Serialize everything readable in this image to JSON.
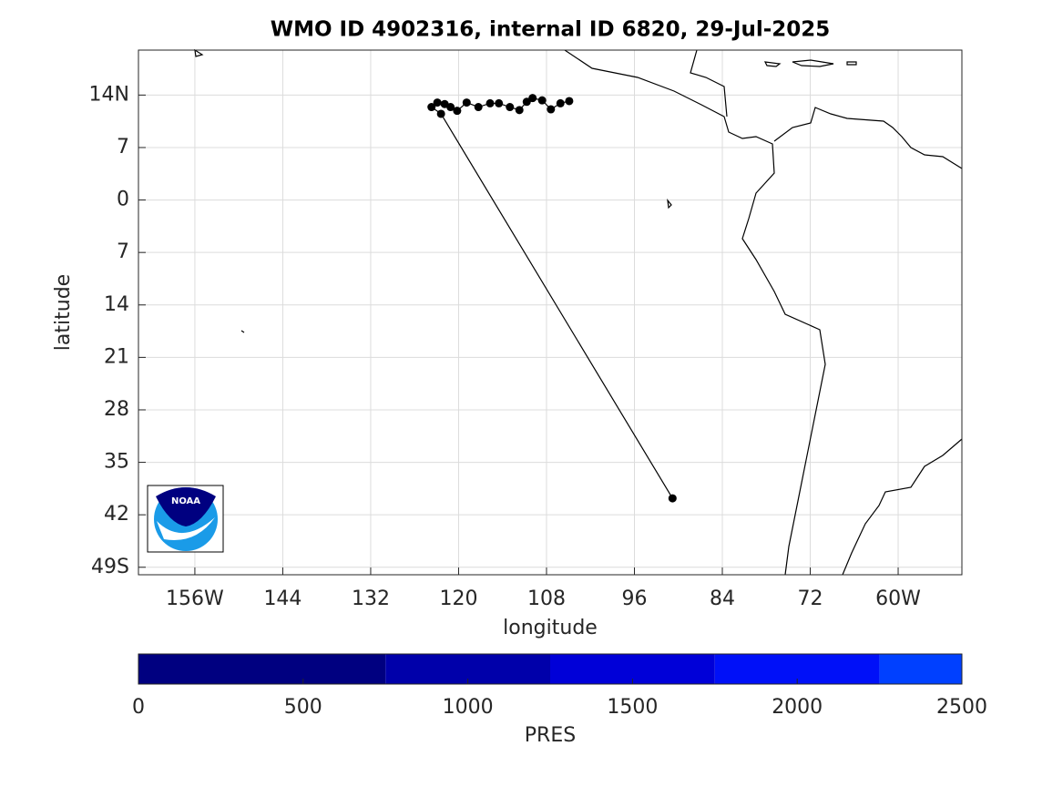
{
  "chart_data": {
    "type": "track",
    "title": "WMO ID 4902316, internal ID 6820, 29-Jul-2025",
    "xlabel": "longitude",
    "ylabel": "latitude",
    "logo": "NOAA",
    "xlim": [
      -163.7,
      -51.3
    ],
    "ylim": [
      -50,
      20
    ],
    "xticks": [
      {
        "value": -156,
        "label": "156W"
      },
      {
        "value": -144,
        "label": "144"
      },
      {
        "value": -132,
        "label": "132"
      },
      {
        "value": -120,
        "label": "120"
      },
      {
        "value": -108,
        "label": "108"
      },
      {
        "value": -96,
        "label": "96"
      },
      {
        "value": -84,
        "label": "84"
      },
      {
        "value": -72,
        "label": "72"
      },
      {
        "value": -60,
        "label": "60W"
      }
    ],
    "yticks": [
      {
        "value": 14,
        "label": "14N"
      },
      7,
      0,
      {
        "value": -7,
        "label": "7"
      },
      {
        "value": -14,
        "label": "14"
      },
      {
        "value": -21,
        "label": "21"
      },
      {
        "value": -28,
        "label": "28"
      },
      {
        "value": -35,
        "label": "35"
      },
      {
        "value": -42,
        "label": "42"
      },
      {
        "value": -49,
        "label": "49S"
      }
    ],
    "grid": true,
    "color": "#000000",
    "x": [
      -104.9,
      -106.1,
      -107.4,
      -108.6,
      -109.9,
      -110.7,
      -111.7,
      -113.0,
      -114.5,
      -115.7,
      -117.3,
      -118.9,
      -120.2,
      -121.1,
      -121.9,
      -122.9,
      -123.7,
      -122.4,
      -90.8
    ],
    "values": [
      13.2,
      12.9,
      12.1,
      13.3,
      13.6,
      13.1,
      12.0,
      12.4,
      12.9,
      12.9,
      12.4,
      13.0,
      11.9,
      12.4,
      12.8,
      13.0,
      12.4,
      11.5,
      -39.8
    ],
    "colorbar": {
      "label": "PRES",
      "lim": [
        0,
        2500
      ],
      "ticks": [
        0,
        500,
        1000,
        1500,
        2000,
        2500
      ],
      "bins": [
        0,
        750,
        1250,
        1750,
        2250,
        2500
      ],
      "colors": [
        "#000080",
        "#0000aa",
        "#0000d8",
        "#0010f8",
        "#0040ff"
      ]
    }
  }
}
